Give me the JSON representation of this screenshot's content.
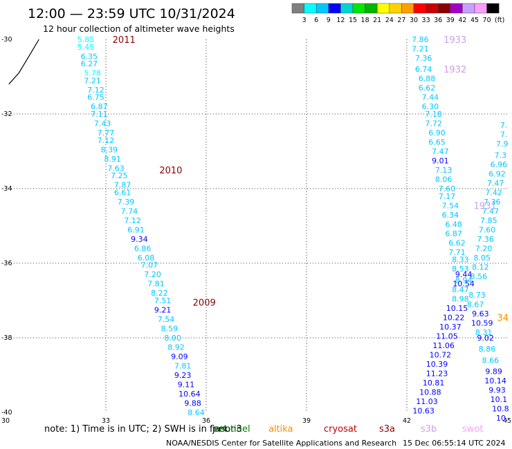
{
  "header": {
    "title": "12:00 — 23:59 UTC 10/31/2024",
    "subtitle": "12 hour collection of altimeter wave heights"
  },
  "colorbar": {
    "ticks": [
      "3",
      "6",
      "9",
      "12",
      "15",
      "18",
      "21",
      "24",
      "27",
      "30",
      "33",
      "36",
      "39",
      "42",
      "45",
      "70"
    ],
    "unit": "(ft)",
    "colors": [
      "#7f7f7f",
      "#00ffff",
      "#00c8ff",
      "#0000ff",
      "#00d4d4",
      "#00e800",
      "#00b400",
      "#ffff00",
      "#ffd200",
      "#ffa000",
      "#ff0000",
      "#c80000",
      "#8c0000",
      "#a000c8",
      "#c8a0ff",
      "#ff9cff",
      "#000000"
    ]
  },
  "footer": {
    "note_prefix": "note:  1) Time is in UTC;  2) SWH is in feet",
    "credit": "NOAA/NESDIS Center for Satellite Applications and Research",
    "timestamp": "15 Dec 06:55:14 UTC 2024"
  },
  "missions": [
    {
      "name": "jason3",
      "color": "#000000"
    },
    {
      "name": "sentinel",
      "color": "#008000"
    },
    {
      "name": "altika",
      "color": "#ff8c00"
    },
    {
      "name": "cryosat",
      "color": "#c00000"
    },
    {
      "name": "s3a",
      "color": "#8b0000"
    },
    {
      "name": "s3b",
      "color": "#c8a0e8"
    },
    {
      "name": "swot",
      "color": "#ff9cff"
    }
  ],
  "chart_data": {
    "type": "scatter",
    "xlim": [
      30,
      45
    ],
    "ylim": [
      -40,
      -30
    ],
    "xticks": [
      "30",
      "33",
      "36",
      "39",
      "42",
      "45"
    ],
    "yticks": [
      "-30",
      "-32",
      "-34",
      "-36",
      "-38",
      "-40"
    ],
    "grid": true,
    "coastline": [
      [
        30.1,
        -31.2
      ],
      [
        30.4,
        -30.9
      ],
      [
        30.6,
        -30.6
      ],
      [
        30.8,
        -30.3
      ],
      [
        31.0,
        -30.0
      ]
    ],
    "tracks": [
      {
        "series": [
          {
            "x": 32.4,
            "y": -30.0,
            "v": "5.85",
            "c": "#00ffff"
          },
          {
            "x": 32.4,
            "y": -30.2,
            "v": "5.45",
            "c": "#00ffff"
          },
          {
            "x": 32.5,
            "y": -30.45,
            "v": "6.35",
            "c": "#00c8ff"
          },
          {
            "x": 32.5,
            "y": -30.65,
            "v": "6.27",
            "c": "#00c8ff"
          },
          {
            "x": 32.6,
            "y": -30.9,
            "v": "5.78",
            "c": "#00ffff"
          },
          {
            "x": 32.6,
            "y": -31.1,
            "v": "7.21",
            "c": "#00c8ff"
          },
          {
            "x": 32.7,
            "y": -31.35,
            "v": "7.12",
            "c": "#00c8ff"
          },
          {
            "x": 32.7,
            "y": -31.55,
            "v": "6.75",
            "c": "#00c8ff"
          },
          {
            "x": 32.8,
            "y": -31.8,
            "v": "6.87",
            "c": "#00c8ff"
          },
          {
            "x": 32.8,
            "y": -32.0,
            "v": "7.11",
            "c": "#00c8ff"
          },
          {
            "x": 32.9,
            "y": -32.25,
            "v": "7.43",
            "c": "#00c8ff"
          },
          {
            "x": 33.0,
            "y": -32.5,
            "v": "7.77",
            "c": "#00c8ff"
          },
          {
            "x": 33.0,
            "y": -32.7,
            "v": "7.12",
            "c": "#00c8ff"
          },
          {
            "x": 33.1,
            "y": -32.95,
            "v": "8.39",
            "c": "#00c8ff"
          },
          {
            "x": 33.2,
            "y": -33.2,
            "v": "8.91",
            "c": "#00c8ff"
          },
          {
            "x": 33.3,
            "y": -33.45,
            "v": "7.63",
            "c": "#00c8ff"
          },
          {
            "x": 33.4,
            "y": -33.65,
            "v": "7.25",
            "c": "#00c8ff"
          },
          {
            "x": 33.5,
            "y": -33.9,
            "v": "7.87",
            "c": "#00c8ff"
          },
          {
            "x": 33.5,
            "y": -34.1,
            "v": "6.61",
            "c": "#00c8ff"
          },
          {
            "x": 33.6,
            "y": -34.35,
            "v": "7.39",
            "c": "#00c8ff"
          },
          {
            "x": 33.7,
            "y": -34.6,
            "v": "7.74",
            "c": "#00c8ff"
          },
          {
            "x": 33.8,
            "y": -34.85,
            "v": "7.12",
            "c": "#00c8ff"
          },
          {
            "x": 33.9,
            "y": -35.1,
            "v": "6.91",
            "c": "#00c8ff"
          },
          {
            "x": 34.0,
            "y": -35.35,
            "v": "9.34",
            "c": "#0000ff"
          },
          {
            "x": 34.1,
            "y": -35.6,
            "v": "6.86",
            "c": "#00c8ff"
          },
          {
            "x": 34.2,
            "y": -35.85,
            "v": "6.08",
            "c": "#00c8ff"
          },
          {
            "x": 34.3,
            "y": -36.05,
            "v": "7.07",
            "c": "#00c8ff"
          },
          {
            "x": 34.4,
            "y": -36.3,
            "v": "7.20",
            "c": "#00c8ff"
          },
          {
            "x": 34.5,
            "y": -36.55,
            "v": "7.81",
            "c": "#00c8ff"
          },
          {
            "x": 34.6,
            "y": -36.8,
            "v": "8.22",
            "c": "#00c8ff"
          },
          {
            "x": 34.7,
            "y": -37.0,
            "v": "7.51",
            "c": "#00c8ff"
          },
          {
            "x": 34.7,
            "y": -37.25,
            "v": "9.21",
            "c": "#0000ff"
          },
          {
            "x": 34.8,
            "y": -37.5,
            "v": "7.54",
            "c": "#00c8ff"
          },
          {
            "x": 34.9,
            "y": -37.75,
            "v": "8.59",
            "c": "#00c8ff"
          },
          {
            "x": 35.0,
            "y": -38.0,
            "v": "8.00",
            "c": "#00c8ff"
          },
          {
            "x": 35.1,
            "y": -38.25,
            "v": "8.92",
            "c": "#00c8ff"
          },
          {
            "x": 35.2,
            "y": -38.5,
            "v": "9.09",
            "c": "#0000ff"
          },
          {
            "x": 35.3,
            "y": -38.75,
            "v": "7.81",
            "c": "#00c8ff"
          },
          {
            "x": 35.3,
            "y": -39.0,
            "v": "9.23",
            "c": "#0000ff"
          },
          {
            "x": 35.4,
            "y": -39.25,
            "v": "9.11",
            "c": "#0000ff"
          },
          {
            "x": 35.5,
            "y": -39.5,
            "v": "10.64",
            "c": "#0000ff"
          },
          {
            "x": 35.6,
            "y": -39.75,
            "v": "9.88",
            "c": "#0000ff"
          },
          {
            "x": 35.7,
            "y": -40.0,
            "v": "8.64",
            "c": "#00c8ff"
          }
        ],
        "markers": [
          {
            "x": 33.2,
            "y": -30.0,
            "label": "2011",
            "c": "#8b0000"
          },
          {
            "x": 34.6,
            "y": -33.5,
            "label": "2010",
            "c": "#8b0000"
          },
          {
            "x": 35.6,
            "y": -37.05,
            "label": "2009",
            "c": "#8b0000"
          }
        ]
      },
      {
        "series": [
          {
            "x": 42.4,
            "y": -30.0,
            "v": "7.86",
            "c": "#00c8ff"
          },
          {
            "x": 42.4,
            "y": -30.25,
            "v": "7.21",
            "c": "#00c8ff"
          },
          {
            "x": 42.5,
            "y": -30.5,
            "v": "7.36",
            "c": "#00c8ff"
          },
          {
            "x": 42.5,
            "y": -30.8,
            "v": "6.74",
            "c": "#00c8ff"
          },
          {
            "x": 42.6,
            "y": -31.05,
            "v": "6.88",
            "c": "#00c8ff"
          },
          {
            "x": 42.6,
            "y": -31.3,
            "v": "6.62",
            "c": "#00c8ff"
          },
          {
            "x": 42.7,
            "y": -31.55,
            "v": "7.44",
            "c": "#00c8ff"
          },
          {
            "x": 42.7,
            "y": -31.8,
            "v": "6.30",
            "c": "#00c8ff"
          },
          {
            "x": 42.8,
            "y": -32.0,
            "v": "7.18",
            "c": "#00c8ff"
          },
          {
            "x": 42.8,
            "y": -32.25,
            "v": "7.72",
            "c": "#00c8ff"
          },
          {
            "x": 42.9,
            "y": -32.5,
            "v": "6.90",
            "c": "#00c8ff"
          },
          {
            "x": 42.9,
            "y": -32.75,
            "v": "6.65",
            "c": "#00c8ff"
          },
          {
            "x": 43.0,
            "y": -33.0,
            "v": "7.47",
            "c": "#00c8ff"
          },
          {
            "x": 43.0,
            "y": -33.25,
            "v": "9.01",
            "c": "#0000ff"
          },
          {
            "x": 43.1,
            "y": -33.5,
            "v": "7.13",
            "c": "#00c8ff"
          },
          {
            "x": 43.1,
            "y": -33.75,
            "v": "8.06",
            "c": "#00c8ff"
          },
          {
            "x": 43.2,
            "y": -34.0,
            "v": "7.60",
            "c": "#00c8ff"
          },
          {
            "x": 43.2,
            "y": -34.2,
            "v": "7.17",
            "c": "#00c8ff"
          },
          {
            "x": 43.3,
            "y": -34.45,
            "v": "7.54",
            "c": "#00c8ff"
          },
          {
            "x": 43.3,
            "y": -34.7,
            "v": "6.34",
            "c": "#00c8ff"
          },
          {
            "x": 43.4,
            "y": -34.95,
            "v": "6.48",
            "c": "#00c8ff"
          },
          {
            "x": 43.4,
            "y": -35.2,
            "v": "6.87",
            "c": "#00c8ff"
          },
          {
            "x": 43.5,
            "y": -35.45,
            "v": "6.62",
            "c": "#00c8ff"
          },
          {
            "x": 43.5,
            "y": -35.7,
            "v": "7.71",
            "c": "#00c8ff"
          },
          {
            "x": 43.6,
            "y": -35.9,
            "v": "8.33",
            "c": "#00c8ff"
          },
          {
            "x": 43.6,
            "y": -36.15,
            "v": "8.53",
            "c": "#00c8ff"
          },
          {
            "x": 43.7,
            "y": -36.3,
            "v": "9.44",
            "c": "#0000ff"
          },
          {
            "x": 43.7,
            "y": -36.45,
            "v": "8.94",
            "c": "#00c8ff"
          },
          {
            "x": 43.7,
            "y": -36.55,
            "v": "10.54",
            "c": "#0000ff"
          },
          {
            "x": 43.6,
            "y": -36.7,
            "v": "8.47",
            "c": "#00c8ff"
          },
          {
            "x": 43.6,
            "y": -36.95,
            "v": "8.98",
            "c": "#00c8ff"
          },
          {
            "x": 43.5,
            "y": -37.2,
            "v": "10.15",
            "c": "#0000ff"
          },
          {
            "x": 43.4,
            "y": -37.45,
            "v": "10.22",
            "c": "#0000ff"
          },
          {
            "x": 43.3,
            "y": -37.7,
            "v": "10.37",
            "c": "#0000ff"
          },
          {
            "x": 43.2,
            "y": -37.95,
            "v": "11.05",
            "c": "#0000ff"
          },
          {
            "x": 43.1,
            "y": -38.2,
            "v": "11.06",
            "c": "#0000ff"
          },
          {
            "x": 43.0,
            "y": -38.45,
            "v": "10.72",
            "c": "#0000ff"
          },
          {
            "x": 42.9,
            "y": -38.7,
            "v": "10.39",
            "c": "#0000ff"
          },
          {
            "x": 42.9,
            "y": -38.95,
            "v": "11.23",
            "c": "#0000ff"
          },
          {
            "x": 42.8,
            "y": -39.2,
            "v": "10.81",
            "c": "#0000ff"
          },
          {
            "x": 42.7,
            "y": -39.45,
            "v": "10.88",
            "c": "#0000ff"
          },
          {
            "x": 42.6,
            "y": -39.7,
            "v": "11.03",
            "c": "#0000ff"
          },
          {
            "x": 42.5,
            "y": -39.95,
            "v": "10.63",
            "c": "#0000ff"
          }
        ],
        "markers": [
          {
            "x": 43.1,
            "y": -30.0,
            "label": "1933",
            "c": "#c8a0e8"
          },
          {
            "x": 43.1,
            "y": -30.8,
            "label": "1932",
            "c": "#c8a0e8"
          },
          {
            "x": 44.0,
            "y": -34.45,
            "label": "1931",
            "c": "#c8a0e8"
          }
        ]
      },
      {
        "series": [
          {
            "x": 44.9,
            "y": -32.3,
            "v": "7.",
            "c": "#00c8ff"
          },
          {
            "x": 44.9,
            "y": -32.55,
            "v": "7.",
            "c": "#00c8ff"
          },
          {
            "x": 44.85,
            "y": -32.8,
            "v": "7.9",
            "c": "#00c8ff"
          },
          {
            "x": 44.8,
            "y": -33.1,
            "v": "7.3",
            "c": "#00c8ff"
          },
          {
            "x": 44.75,
            "y": -33.35,
            "v": "6.96",
            "c": "#00c8ff"
          },
          {
            "x": 44.7,
            "y": -33.6,
            "v": "6.92",
            "c": "#00c8ff"
          },
          {
            "x": 44.65,
            "y": -33.85,
            "v": "7.47",
            "c": "#00c8ff"
          },
          {
            "x": 44.6,
            "y": -34.1,
            "v": "7.42",
            "c": "#00c8ff"
          },
          {
            "x": 44.55,
            "y": -34.35,
            "v": "7.36",
            "c": "#00c8ff"
          },
          {
            "x": 44.5,
            "y": -34.6,
            "v": "7.47",
            "c": "#00c8ff"
          },
          {
            "x": 44.45,
            "y": -34.85,
            "v": "7.85",
            "c": "#00c8ff"
          },
          {
            "x": 44.4,
            "y": -35.1,
            "v": "7.60",
            "c": "#00c8ff"
          },
          {
            "x": 44.35,
            "y": -35.35,
            "v": "7.36",
            "c": "#00c8ff"
          },
          {
            "x": 44.3,
            "y": -35.6,
            "v": "7.20",
            "c": "#00c8ff"
          },
          {
            "x": 44.25,
            "y": -35.85,
            "v": "8.05",
            "c": "#00c8ff"
          },
          {
            "x": 44.2,
            "y": -36.1,
            "v": "8.12",
            "c": "#00c8ff"
          },
          {
            "x": 44.15,
            "y": -36.35,
            "v": "8.56",
            "c": "#00c8ff"
          },
          {
            "x": 44.1,
            "y": -36.85,
            "v": "8.73",
            "c": "#00c8ff"
          },
          {
            "x": 44.05,
            "y": -37.1,
            "v": "8.67",
            "c": "#00c8ff"
          },
          {
            "x": 44.2,
            "y": -37.35,
            "v": "9.63",
            "c": "#0000ff"
          },
          {
            "x": 44.25,
            "y": -37.6,
            "v": "10.59",
            "c": "#0000ff"
          },
          {
            "x": 44.3,
            "y": -37.85,
            "v": "8.31",
            "c": "#00c8ff"
          },
          {
            "x": 44.35,
            "y": -38.0,
            "v": "9.02",
            "c": "#0000ff"
          },
          {
            "x": 44.4,
            "y": -38.3,
            "v": "8.86",
            "c": "#00c8ff"
          },
          {
            "x": 44.5,
            "y": -38.6,
            "v": "8.66",
            "c": "#00c8ff"
          },
          {
            "x": 44.6,
            "y": -38.9,
            "v": "9.89",
            "c": "#0000ff"
          },
          {
            "x": 44.65,
            "y": -39.15,
            "v": "10.14",
            "c": "#0000ff"
          },
          {
            "x": 44.7,
            "y": -39.4,
            "v": "9.93",
            "c": "#0000ff"
          },
          {
            "x": 44.75,
            "y": -39.65,
            "v": "10.1",
            "c": "#0000ff"
          },
          {
            "x": 44.8,
            "y": -39.9,
            "v": "10.8",
            "c": "#0000ff"
          },
          {
            "x": 44.85,
            "y": -40.15,
            "v": "10.",
            "c": "#0000ff"
          }
        ],
        "markers": [
          {
            "x": 44.7,
            "y": -37.45,
            "label": "34",
            "c": "#ff8c00"
          }
        ]
      }
    ]
  }
}
